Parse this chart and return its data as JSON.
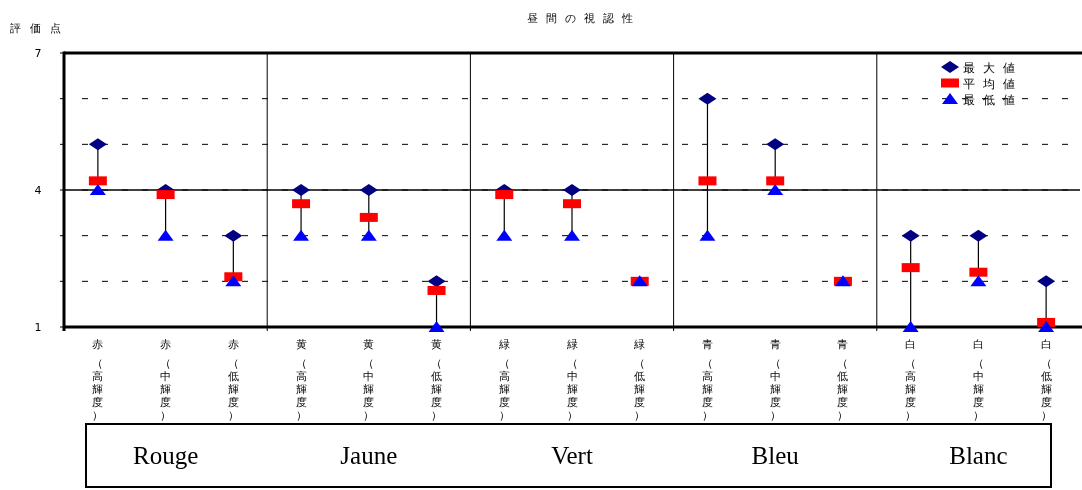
{
  "chart_data": {
    "type": "scatter",
    "title": "昼間の視認性",
    "ylabel": "評価点",
    "categories": [
      "赤（高輝度）",
      "赤（中輝度）",
      "赤（低輝度）",
      "黄（高輝度）",
      "黄（中輝度）",
      "黄（低輝度）",
      "緑（高輝度）",
      "緑（中輝度）",
      "緑（低輝度）",
      "青（高輝度）",
      "青（中輝度）",
      "青（低輝度）",
      "白（高輝度）",
      "白（中輝度）",
      "白（低輝度）"
    ],
    "series": [
      {
        "name": "最大値",
        "color": "#000080",
        "marker": "diamond",
        "values": [
          5,
          4,
          3,
          4,
          4,
          2,
          4,
          4,
          null,
          6,
          5,
          null,
          3,
          3,
          2
        ]
      },
      {
        "name": "平均値",
        "color": "#ff0000",
        "marker": "square",
        "values": [
          4.2,
          3.9,
          2.1,
          3.7,
          3.4,
          1.8,
          3.9,
          3.7,
          2.0,
          4.2,
          4.2,
          2.0,
          2.3,
          2.2,
          1.1
        ]
      },
      {
        "name": "最低値",
        "color": "#0000ff",
        "marker": "triangle",
        "values": [
          4,
          3,
          2,
          3,
          3,
          1,
          3,
          3,
          2,
          3,
          4,
          2,
          1,
          2,
          1
        ]
      }
    ],
    "ylim": [
      1,
      7
    ],
    "yticks": [
      1,
      {
        "value": 2,
        "label": null
      },
      {
        "value": 3,
        "label": null
      },
      4,
      {
        "value": 5,
        "label": null
      },
      {
        "value": 6,
        "label": null
      },
      7
    ],
    "grid": "y",
    "legend": "top right",
    "ref_lines": [
      {
        "axis": "y",
        "value": 4,
        "line_style": "solid"
      }
    ],
    "annotations": [
      "Rouge",
      "Jaune",
      "Vert",
      "Bleu",
      "Blanc"
    ]
  }
}
